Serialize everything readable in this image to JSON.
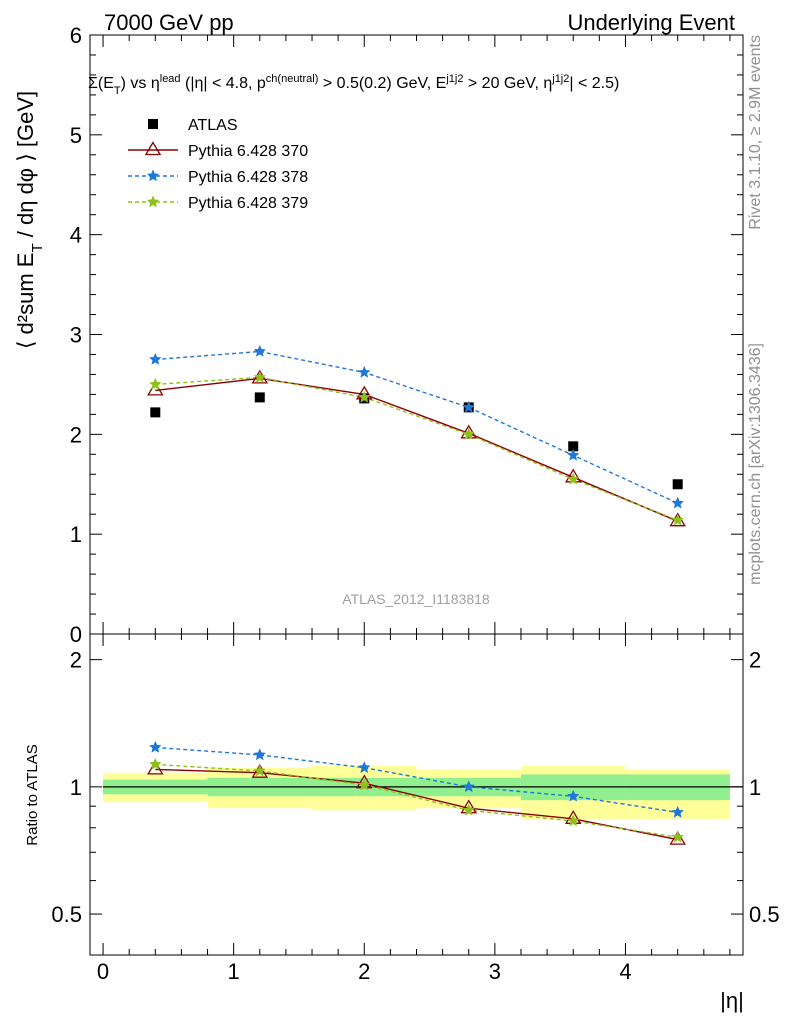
{
  "header": {
    "left": "7000 GeV pp",
    "right": "Underlying Event"
  },
  "cut_text": "Σ(E_T) vs η^lead (|η| < 4.8, p_T^ch(neutral) > 0.5(0.2) GeV, E_T^j1j2 > 20 GeV, η^j1j2| < 2.5)",
  "watermark": "ATLAS_2012_I1183818",
  "side_labels": {
    "rivet": "Rivet 3.1.10, ≥ 2.9M events",
    "mcplots": "mcplots.cern.ch [arXiv:1306.3436]"
  },
  "colors": {
    "atlas": "#000000",
    "p370": "#8b0000",
    "p378": "#1e78d8",
    "p379": "#8fc01a",
    "band_inner": "#90f090",
    "band_outer": "#ffff99"
  },
  "chart_data": [
    {
      "type": "scatter",
      "panel": "main",
      "ylabel": "⟨ d²sum E_T / dη dφ ⟩ [GeV]",
      "xlim": [
        -0.1,
        4.9
      ],
      "ylim": [
        0,
        6
      ],
      "yticks": [
        0,
        1,
        2,
        3,
        4,
        5,
        6
      ],
      "legend_position": "top-left",
      "x": [
        0.4,
        1.2,
        2.0,
        2.8,
        3.6,
        4.4
      ],
      "series": [
        {
          "name": "ATLAS",
          "key": "atlas",
          "marker": "square",
          "values": [
            2.22,
            2.37,
            2.36,
            2.27,
            1.88,
            1.5
          ]
        },
        {
          "name": "Pythia 6.428 370",
          "key": "p370",
          "marker": "triangle",
          "values": [
            2.44,
            2.56,
            2.4,
            2.01,
            1.57,
            1.13
          ]
        },
        {
          "name": "Pythia 6.428 378",
          "key": "p378",
          "marker": "star",
          "values": [
            2.75,
            2.83,
            2.62,
            2.27,
            1.79,
            1.31
          ]
        },
        {
          "name": "Pythia 6.428 379",
          "key": "p379",
          "marker": "star",
          "values": [
            2.5,
            2.57,
            2.37,
            2.0,
            1.55,
            1.14
          ]
        }
      ]
    },
    {
      "type": "scatter",
      "panel": "ratio",
      "ylabel": "Ratio to ATLAS",
      "xlabel": "|η|",
      "xlim": [
        -0.1,
        4.9
      ],
      "ylim": [
        0.4,
        2.3
      ],
      "ylog": true,
      "yticks": [
        0.5,
        1,
        2
      ],
      "xticks": [
        0,
        1,
        2,
        3,
        4
      ],
      "x": [
        0.4,
        1.2,
        2.0,
        2.8,
        3.6,
        4.4
      ],
      "bands": {
        "bin_edges": [
          0.0,
          0.8,
          1.6,
          2.4,
          3.2,
          4.0,
          4.8
        ],
        "inner": [
          [
            0.96,
            1.04
          ],
          [
            0.95,
            1.05
          ],
          [
            0.95,
            1.05
          ],
          [
            0.95,
            1.05
          ],
          [
            0.93,
            1.07
          ],
          [
            0.93,
            1.07
          ]
        ],
        "outer": [
          [
            0.92,
            1.08
          ],
          [
            0.89,
            1.11
          ],
          [
            0.88,
            1.12
          ],
          [
            0.89,
            1.1
          ],
          [
            0.84,
            1.12
          ],
          [
            0.84,
            1.1
          ]
        ]
      },
      "series": [
        {
          "name": "Pythia 6.428 370",
          "key": "p370",
          "marker": "triangle",
          "values": [
            1.1,
            1.08,
            1.02,
            0.89,
            0.84,
            0.75
          ]
        },
        {
          "name": "Pythia 6.428 378",
          "key": "p378",
          "marker": "star",
          "values": [
            1.24,
            1.19,
            1.11,
            1.0,
            0.95,
            0.87
          ]
        },
        {
          "name": "Pythia 6.428 379",
          "key": "p379",
          "marker": "star",
          "values": [
            1.13,
            1.09,
            1.01,
            0.88,
            0.83,
            0.76
          ]
        }
      ]
    }
  ]
}
